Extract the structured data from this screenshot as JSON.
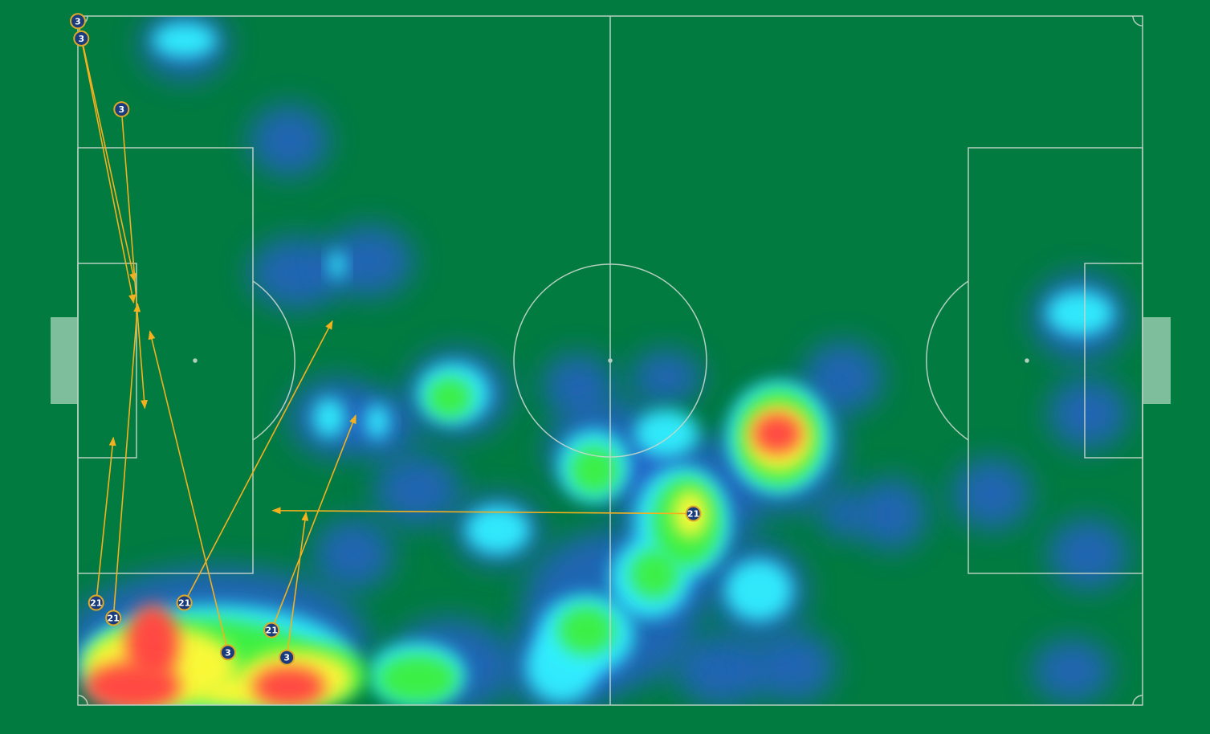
{
  "chart_data": {
    "type": "scatter",
    "subtype": "pitch-heatmap-with-passes",
    "pitch_units": "meters",
    "pitch_size": [
      105,
      68
    ],
    "colors": {
      "pitch": "#017b40",
      "lines": "#c8d8cc",
      "pass": "#f5b01e",
      "marker_fill": "#1a3c7c",
      "marker_ring": "#e0a82a",
      "heat_scale": [
        "#2a5fd8",
        "#33f0ff",
        "#3cf03c",
        "#f8f838",
        "#ff4a42"
      ]
    },
    "passes": [
      {
        "player": "3",
        "from": [
          0,
          0.5
        ],
        "to": [
          5.6,
          26.2
        ]
      },
      {
        "player": "3",
        "from": [
          0,
          0.5
        ],
        "to": [
          5.5,
          28.3
        ]
      },
      {
        "player": "3",
        "from": [
          4.3,
          9.2
        ],
        "to": [
          6.6,
          38.7
        ]
      },
      {
        "player": "21",
        "from": [
          1.8,
          57.9
        ],
        "to": [
          3.5,
          41.6
        ]
      },
      {
        "player": "21",
        "from": [
          3.5,
          59.4
        ],
        "to": [
          5.9,
          28.4
        ]
      },
      {
        "player": "21",
        "from": [
          10.5,
          57.9
        ],
        "to": [
          25.1,
          30.1
        ]
      },
      {
        "player": "3",
        "from": [
          14.8,
          62.8
        ],
        "to": [
          7.1,
          31.1
        ]
      },
      {
        "player": "21",
        "from": [
          19.1,
          60.6
        ],
        "to": [
          27.4,
          39.4
        ]
      },
      {
        "player": "3",
        "from": [
          20.6,
          63.3
        ],
        "to": [
          22.5,
          49.0
        ]
      },
      {
        "player": "21",
        "from": [
          60.7,
          49.1
        ],
        "to": [
          19.2,
          48.8
        ]
      }
    ]
  }
}
